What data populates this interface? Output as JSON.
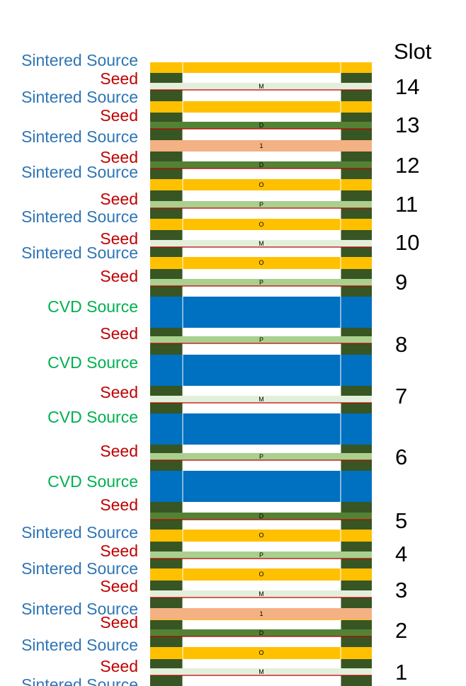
{
  "colors": {
    "sintered": "#FFC000",
    "cvd": "#0070C0",
    "seed_dark": "#375623",
    "layer_D": "#548235",
    "layer_P": "#A9D08E",
    "layer_M": "#E2EFDA",
    "layer_1": "#F4B183",
    "seed_line": "#C00000",
    "label_sintered": "#2E75B6",
    "label_cvd": "#00B050",
    "label_seed": "#C00000",
    "slot_text": "#000000"
  },
  "slot_header": "Slot",
  "slots": [
    "14",
    "13",
    "12",
    "11",
    "10",
    "9",
    "8",
    "7",
    "6",
    "5",
    "4",
    "3",
    "2",
    "1"
  ],
  "left_labels": [
    {
      "text": "Sintered Source",
      "kind": "sintered"
    },
    {
      "text": "Seed",
      "kind": "seed"
    },
    {
      "text": "Sintered Source",
      "kind": "sintered"
    },
    {
      "text": "Seed",
      "kind": "seed"
    },
    {
      "text": "Sintered Source",
      "kind": "sintered"
    },
    {
      "text": "Seed",
      "kind": "seed"
    },
    {
      "text": "Sintered Source",
      "kind": "sintered"
    },
    {
      "text": "Seed",
      "kind": "seed"
    },
    {
      "text": "Sintered Source",
      "kind": "sintered"
    },
    {
      "text": "Seed",
      "kind": "seed"
    },
    {
      "text": "Sintered Source",
      "kind": "sintered"
    },
    {
      "text": "Seed",
      "kind": "seed"
    },
    {
      "text": "CVD Source",
      "kind": "cvd"
    },
    {
      "text": "Seed",
      "kind": "seed"
    },
    {
      "text": "CVD Source",
      "kind": "cvd"
    },
    {
      "text": "Seed",
      "kind": "seed"
    },
    {
      "text": "CVD Source",
      "kind": "cvd"
    },
    {
      "text": "Seed",
      "kind": "seed"
    },
    {
      "text": "CVD Source",
      "kind": "cvd"
    },
    {
      "text": "Seed",
      "kind": "seed"
    },
    {
      "text": "Sintered Source",
      "kind": "sintered"
    },
    {
      "text": "Seed",
      "kind": "seed"
    },
    {
      "text": "Sintered Source",
      "kind": "sintered"
    },
    {
      "text": "Seed",
      "kind": "seed"
    },
    {
      "text": "Sintered Source",
      "kind": "sintered"
    },
    {
      "text": "Seed",
      "kind": "seed"
    },
    {
      "text": "Sintered Source",
      "kind": "sintered"
    },
    {
      "text": "Seed",
      "kind": "seed"
    },
    {
      "text": "Sintered Source",
      "kind": "sintered"
    }
  ],
  "layers": [
    {
      "code": "M",
      "kind": "M"
    },
    {
      "code": "D",
      "kind": "D"
    },
    {
      "code": "1",
      "kind": "1"
    },
    {
      "code": "D",
      "kind": "D"
    },
    {
      "code": "O",
      "kind": "sintered"
    },
    {
      "code": "P",
      "kind": "P"
    },
    {
      "code": "O",
      "kind": "sintered"
    },
    {
      "code": "M",
      "kind": "M"
    },
    {
      "code": "O",
      "kind": "sintered"
    },
    {
      "code": "P",
      "kind": "P"
    },
    {
      "code": "P",
      "kind": "P"
    },
    {
      "code": "M",
      "kind": "M"
    },
    {
      "code": "P",
      "kind": "P"
    },
    {
      "code": "D",
      "kind": "D"
    },
    {
      "code": "O",
      "kind": "sintered"
    },
    {
      "code": "P",
      "kind": "P"
    },
    {
      "code": "O",
      "kind": "sintered"
    },
    {
      "code": "M",
      "kind": "M"
    },
    {
      "code": "1",
      "kind": "1"
    },
    {
      "code": "D",
      "kind": "D"
    },
    {
      "code": "O",
      "kind": "sintered"
    },
    {
      "code": "M",
      "kind": "M"
    }
  ]
}
